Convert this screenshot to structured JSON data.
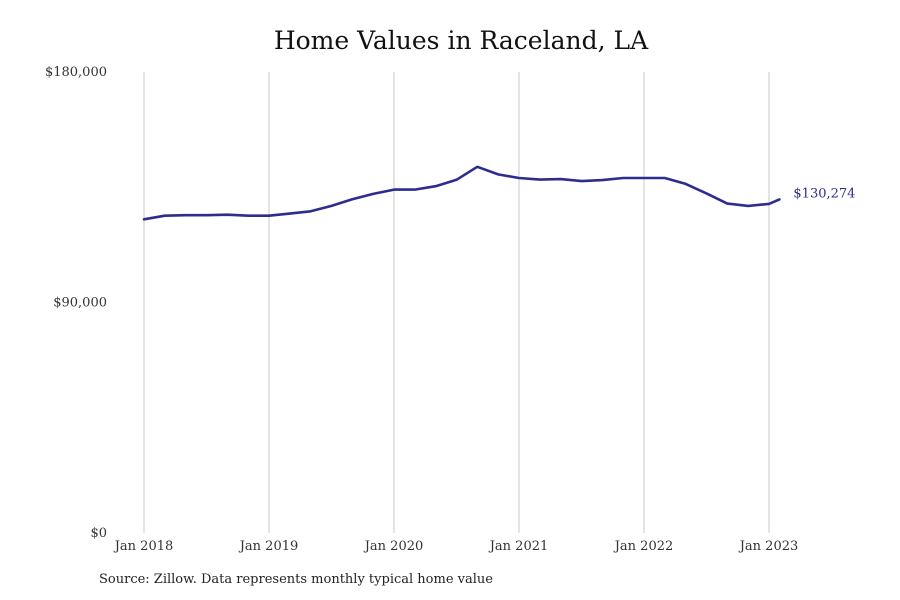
{
  "chart_data": {
    "type": "line",
    "title": "Home Values in Raceland, LA",
    "xlabel": "",
    "ylabel": "",
    "ylim": [
      0,
      180000
    ],
    "y_ticks": [
      {
        "value": 0,
        "label": "$0"
      },
      {
        "value": 90000,
        "label": "$90,000"
      },
      {
        "value": 180000,
        "label": "$180,000"
      }
    ],
    "x_ticks": [
      {
        "value": "2018-01",
        "label": "Jan 2018"
      },
      {
        "value": "2019-01",
        "label": "Jan 2019"
      },
      {
        "value": "2020-01",
        "label": "Jan 2020"
      },
      {
        "value": "2021-01",
        "label": "Jan 2021"
      },
      {
        "value": "2022-01",
        "label": "Jan 2022"
      },
      {
        "value": "2023-01",
        "label": "Jan 2023"
      }
    ],
    "grid": "vertical",
    "line_color": "#2d2d8f",
    "end_label": "$130,274",
    "series": [
      {
        "x": [
          "2018-01",
          "2018-03",
          "2018-05",
          "2018-07",
          "2018-09",
          "2018-11",
          "2019-01",
          "2019-03",
          "2019-05",
          "2019-07",
          "2019-09",
          "2019-11",
          "2020-01",
          "2020-03",
          "2020-05",
          "2020-07",
          "2020-09",
          "2020-11",
          "2021-01",
          "2021-03",
          "2021-05",
          "2021-07",
          "2021-09",
          "2021-11",
          "2022-01",
          "2022-03",
          "2022-05",
          "2022-07",
          "2022-09",
          "2022-11",
          "2023-01",
          "2023-02"
        ],
        "values": [
          122500,
          123900,
          124100,
          124100,
          124300,
          123900,
          123900,
          124700,
          125600,
          127700,
          130300,
          132400,
          134100,
          134100,
          135400,
          137900,
          143000,
          140000,
          138600,
          138000,
          138200,
          137400,
          137800,
          138600,
          138600,
          138600,
          136300,
          132600,
          128600,
          127700,
          128500,
          130274
        ]
      }
    ]
  },
  "source": "Source: Zillow. Data represents monthly typical home value"
}
